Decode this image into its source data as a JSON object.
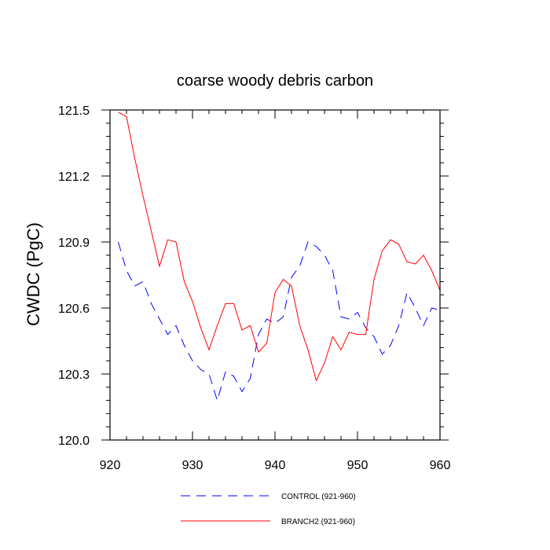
{
  "chart_data": {
    "type": "line",
    "title": "coarse woody debris carbon",
    "xlabel": "",
    "ylabel": "CWDC  (PgC)",
    "xlim": [
      920,
      960
    ],
    "ylim": [
      120.0,
      121.5
    ],
    "x_ticks": [
      920,
      930,
      940,
      950,
      960
    ],
    "y_ticks": [
      120.0,
      120.3,
      120.6,
      120.9,
      121.2,
      121.5
    ],
    "x_tick_labels": [
      "920",
      "930",
      "940",
      "950",
      "960"
    ],
    "y_tick_labels": [
      "120.0",
      "120.3",
      "120.6",
      "120.9",
      "121.2",
      "121.5"
    ],
    "grid": false,
    "legend_position": "bottom",
    "x": [
      921,
      922,
      923,
      924,
      925,
      926,
      927,
      928,
      929,
      930,
      931,
      932,
      933,
      934,
      935,
      936,
      937,
      938,
      939,
      940,
      941,
      942,
      943,
      944,
      945,
      946,
      947,
      948,
      949,
      950,
      951,
      952,
      953,
      954,
      955,
      956,
      957,
      958,
      959,
      960
    ],
    "series": [
      {
        "name": "CONTROL (921-960)",
        "color": "#0000ff",
        "dash": "dashed",
        "values": [
          120.9,
          120.77,
          120.7,
          120.72,
          120.62,
          120.55,
          120.48,
          120.52,
          120.43,
          120.36,
          120.32,
          120.3,
          120.18,
          120.31,
          120.29,
          120.22,
          120.28,
          120.48,
          120.55,
          120.53,
          120.56,
          120.74,
          120.79,
          120.9,
          120.88,
          120.84,
          120.77,
          120.56,
          120.55,
          120.58,
          120.51,
          120.47,
          120.39,
          120.43,
          120.52,
          120.67,
          120.6,
          120.52,
          120.6,
          120.59
        ]
      },
      {
        "name": "BRANCH2 (921-960)",
        "color": "#ff0000",
        "dash": "solid",
        "values": [
          121.49,
          121.47,
          121.28,
          121.11,
          120.95,
          120.79,
          120.91,
          120.9,
          120.72,
          120.63,
          120.51,
          120.41,
          120.52,
          120.62,
          120.62,
          120.5,
          120.52,
          120.4,
          120.44,
          120.67,
          120.73,
          120.7,
          120.52,
          120.41,
          120.27,
          120.35,
          120.47,
          120.41,
          120.49,
          120.48,
          120.48,
          120.73,
          120.86,
          120.91,
          120.89,
          120.81,
          120.8,
          120.84,
          120.77,
          120.68
        ]
      }
    ]
  }
}
